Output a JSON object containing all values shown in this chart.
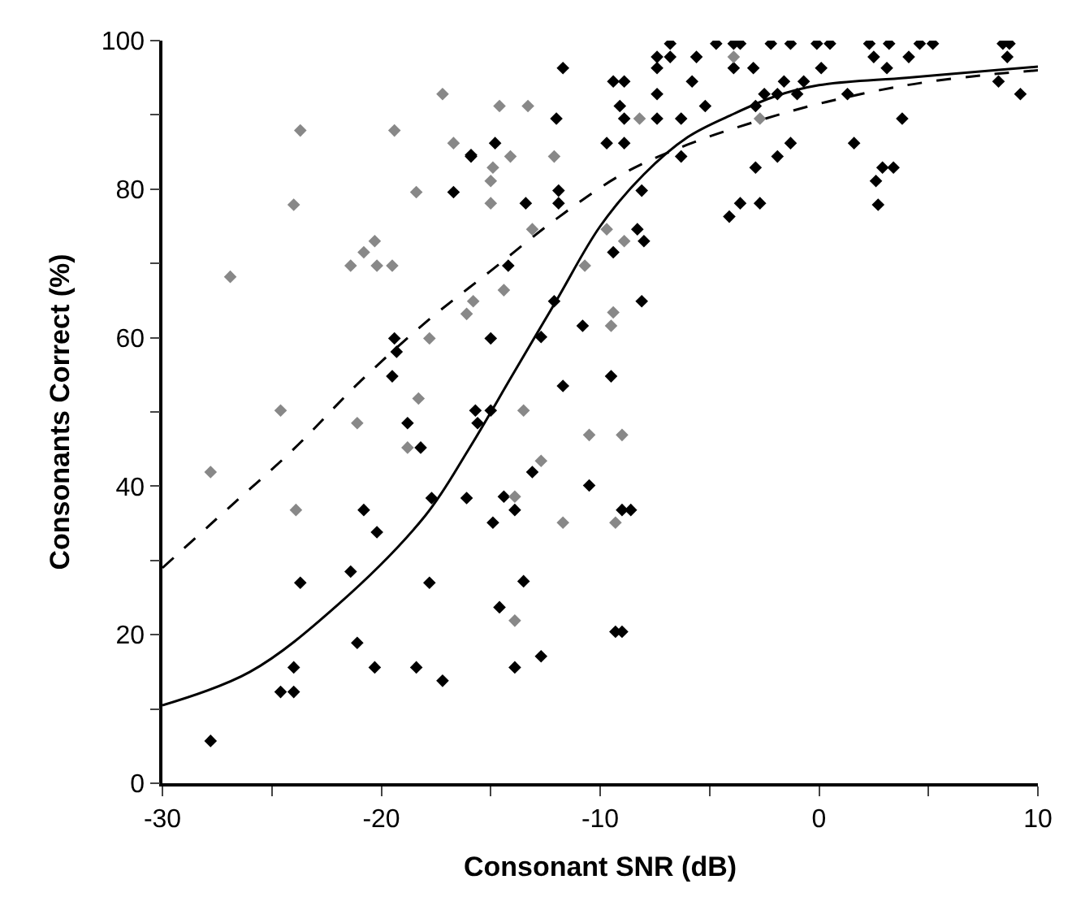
{
  "chart_data": {
    "type": "scatter",
    "xlabel": "Consonant SNR (dB)",
    "ylabel": "Consonants Correct (%)",
    "xlim": [
      -30,
      10
    ],
    "ylim": [
      0,
      100
    ],
    "xticks": [
      -30,
      {
        "value": -25,
        "label": null
      },
      -20,
      {
        "value": -15,
        "label": null
      },
      -10,
      {
        "value": -5,
        "label": null
      },
      0,
      {
        "value": 5,
        "label": null
      },
      10
    ],
    "yticks": [
      0,
      {
        "value": 10,
        "label": null
      },
      20,
      {
        "value": 30,
        "label": null
      },
      40,
      {
        "value": 50,
        "label": null
      },
      60,
      {
        "value": 70,
        "label": null
      },
      80,
      {
        "value": 90,
        "label": null
      },
      100
    ],
    "series": [
      {
        "color": "#000000",
        "marker": "diamond",
        "x": [
          -6.8,
          -4.7,
          -3.9,
          -3.6,
          -2.2,
          -1.3,
          -7.4,
          -6.8,
          -5.6,
          -11.7,
          -7.4,
          -3.9,
          -3.0,
          -9.4,
          -8.9,
          -5.8,
          -1.6,
          -7.4,
          -2.5,
          -1.9,
          -9.1,
          -5.2,
          -2.9,
          -12.0,
          -8.9,
          -7.4,
          -6.3,
          -14.8,
          -9.7,
          -8.9,
          -1.3,
          -15.9,
          -6.3,
          -1.9,
          -2.9,
          -11.9,
          -8.1,
          -13.4,
          -11.9,
          -3.6,
          -2.7,
          -4.1,
          -8.3,
          -8.0,
          -9.4,
          -14.2,
          -12.1,
          -8.1,
          -10.8,
          -15.0,
          -12.7,
          -9.5,
          -11.7,
          -0.1,
          0.5,
          2.3,
          3.2,
          4.6,
          5.2,
          8.4,
          8.7,
          2.5,
          4.1,
          8.6,
          0.1,
          3.1,
          -0.7,
          8.2,
          -1.0,
          1.3,
          9.2,
          3.8,
          1.6,
          2.9,
          3.4,
          2.6,
          2.7,
          -15.9,
          -16.7,
          -19.4,
          -19.3,
          -19.5,
          -18.8,
          -18.2,
          -15.6,
          -17.7,
          -16.1,
          -20.8,
          -20.2,
          -21.4,
          -23.7,
          -17.8,
          -21.1,
          -24.0,
          -20.3,
          -18.4,
          -17.2,
          -24.6,
          -24.0,
          -27.8,
          -15.7,
          -15.0,
          -13.1,
          -10.5,
          -14.4,
          -13.9,
          -14.9,
          -9.0,
          -8.6,
          -13.5,
          -14.6,
          -12.7,
          -13.9,
          -9.3,
          -9.0
        ],
        "values": [
          99.6,
          99.6,
          99.6,
          99.6,
          99.6,
          99.6,
          97.8,
          97.8,
          97.8,
          96.3,
          96.3,
          96.3,
          96.3,
          94.5,
          94.5,
          94.5,
          94.5,
          92.8,
          92.8,
          92.8,
          91.2,
          91.2,
          91.2,
          89.5,
          89.5,
          89.5,
          89.5,
          86.2,
          86.2,
          86.2,
          86.2,
          84.4,
          84.4,
          84.4,
          82.9,
          79.8,
          79.8,
          78.1,
          78.1,
          78.1,
          78.1,
          76.3,
          74.6,
          73.0,
          71.5,
          69.7,
          64.9,
          64.9,
          61.6,
          59.9,
          60.1,
          54.8,
          53.5,
          99.6,
          99.6,
          99.6,
          99.6,
          99.6,
          99.6,
          99.6,
          99.6,
          97.8,
          97.8,
          97.8,
          96.3,
          96.3,
          94.5,
          94.5,
          92.8,
          92.8,
          92.8,
          89.5,
          86.2,
          82.9,
          82.9,
          81.1,
          77.9,
          84.6,
          79.6,
          59.9,
          58.1,
          54.8,
          48.5,
          45.2,
          48.5,
          38.4,
          38.4,
          36.8,
          33.8,
          28.5,
          27.0,
          27.0,
          18.9,
          15.6,
          15.6,
          15.6,
          13.8,
          12.3,
          12.3,
          5.7,
          50.2,
          50.2,
          41.9,
          40.1,
          38.6,
          36.8,
          35.1,
          36.8,
          36.8,
          27.2,
          23.7,
          17.1,
          15.6,
          20.4,
          20.4
        ]
      },
      {
        "color": "#888888",
        "marker": "diamond",
        "x": [
          -14.6,
          -13.3,
          -8.2,
          -14.1,
          -12.1,
          -14.9,
          -15.0,
          -15.0,
          -13.1,
          -9.7,
          -8.9,
          -10.7,
          -14.4,
          -9.4,
          -9.5,
          -2.7,
          -3.9,
          -17.2,
          -23.7,
          -19.4,
          -16.7,
          -24.0,
          -18.4,
          -20.3,
          -20.8,
          -21.4,
          -20.2,
          -19.5,
          -26.9,
          -15.8,
          -16.1,
          -17.8,
          -18.3,
          -27.8,
          -24.6,
          -21.1,
          -18.8,
          -23.9,
          -13.5,
          -10.5,
          -9.0,
          -12.7,
          -13.9,
          -11.7,
          -9.3,
          -13.9
        ],
        "values": [
          91.2,
          91.2,
          89.5,
          84.4,
          84.4,
          82.9,
          81.1,
          78.1,
          74.6,
          74.6,
          73.0,
          69.7,
          66.4,
          63.4,
          61.6,
          89.5,
          97.8,
          92.8,
          87.9,
          87.9,
          86.2,
          77.9,
          79.6,
          73.0,
          71.5,
          69.7,
          69.7,
          69.7,
          68.2,
          64.9,
          63.2,
          59.9,
          51.8,
          41.9,
          50.2,
          48.5,
          45.2,
          36.8,
          50.2,
          46.9,
          46.9,
          43.4,
          38.6,
          35.1,
          35.1,
          21.9
        ]
      },
      {
        "type": "line",
        "color": "#000000",
        "marker": "none",
        "line_style": "solid",
        "x": [
          -30,
          -26,
          -22,
          -18,
          -16,
          -14,
          -12,
          -10,
          -8,
          -6,
          -4,
          -2,
          0,
          4,
          8,
          10
        ],
        "values": [
          10.5,
          15,
          24,
          36,
          45,
          55,
          65,
          75,
          82,
          87,
          90,
          92.5,
          94,
          95,
          96,
          96.5
        ]
      },
      {
        "type": "line",
        "color": "#000000",
        "marker": "none",
        "line_style": "dashed",
        "x": [
          -30,
          -27,
          -24,
          -21,
          -18,
          -15,
          -12,
          -9,
          -6,
          -3,
          0,
          4,
          8,
          10
        ],
        "values": [
          29,
          37,
          45,
          54,
          62,
          69,
          76,
          82,
          86,
          89,
          91.5,
          94,
          95.5,
          96
        ]
      }
    ]
  }
}
